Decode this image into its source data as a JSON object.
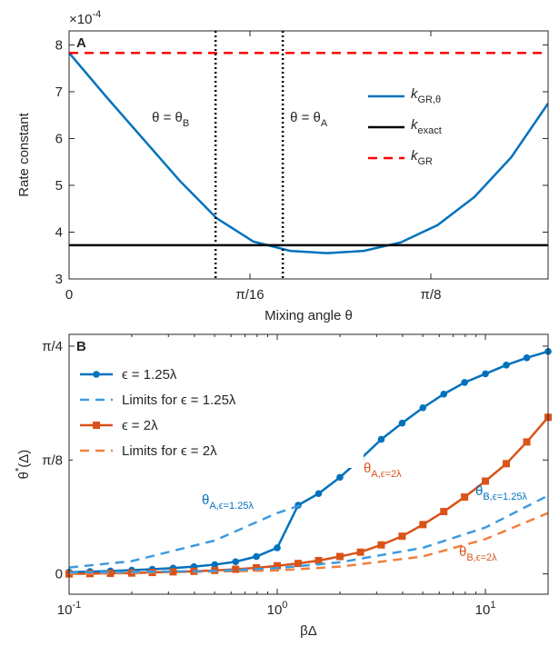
{
  "chart_data": [
    {
      "type": "line",
      "panel_label": "A",
      "y_multiplier": "×10",
      "y_multiplier_exponent": "-4",
      "xlabel": "Mixing angle θ",
      "ylabel": "Rate constant",
      "xlim": [
        0,
        0.52
      ],
      "ylim": [
        3,
        8.3
      ],
      "xticks": [
        0,
        {
          "value": 0.19635,
          "label": "π/16"
        },
        {
          "value": 0.3927,
          "label": "π/8"
        }
      ],
      "yticks": [
        3,
        4,
        5,
        6,
        7,
        8
      ],
      "legend": "right",
      "series": [
        {
          "name": "k",
          "name_sub": "GR,θ",
          "color": "#0072bd",
          "style": "solid",
          "x": [
            0,
            0.04,
            0.08,
            0.12,
            0.16,
            0.2,
            0.24,
            0.28,
            0.32,
            0.36,
            0.4,
            0.44,
            0.48,
            0.52
          ],
          "values": [
            7.83,
            6.9,
            6.0,
            5.1,
            4.3,
            3.8,
            3.6,
            3.55,
            3.6,
            3.78,
            4.15,
            4.75,
            5.6,
            6.75
          ]
        },
        {
          "name": "k",
          "name_sub": "exact",
          "color": "#000000",
          "style": "solid",
          "x": [
            0,
            0.52
          ],
          "values": [
            3.72,
            3.72
          ]
        },
        {
          "name": "k",
          "name_sub": "GR",
          "color": "#ff0000",
          "style": "dashed",
          "x": [
            0,
            0.52
          ],
          "values": [
            7.83,
            7.83
          ]
        }
      ],
      "annotations": [
        {
          "text": "θ = θ",
          "sub": "B",
          "x": 0.159
        },
        {
          "text": "θ = θ",
          "sub": "A",
          "x": 0.232
        }
      ]
    },
    {
      "type": "line",
      "log_x": true,
      "panel_label": "B",
      "xlabel": "βΔ",
      "ylabel": "θ",
      "ylabel_sup": "*",
      "ylabel_rest": "(Δ)",
      "xlim": [
        0.1,
        20
      ],
      "ylim": [
        -0.07,
        0.826
      ],
      "xticks": [
        {
          "value": 0.1,
          "label": "10",
          "exponent": "-1"
        },
        {
          "value": 1,
          "label": "10",
          "exponent": "0"
        },
        {
          "value": 10,
          "label": "10",
          "exponent": "1"
        }
      ],
      "yticks": [
        0,
        {
          "value": 0.3927,
          "label": "π/8"
        },
        {
          "value": 0.7854,
          "label": "π/4"
        }
      ],
      "legend": "upper left",
      "series": [
        {
          "name": "ϵ = 1.25λ",
          "color": "#0072bd",
          "style": "solid",
          "marker": "circle",
          "x": [
            0.1,
            0.126,
            0.158,
            0.2,
            0.251,
            0.316,
            0.398,
            0.501,
            0.631,
            0.794,
            1,
            1.26,
            1.58,
            2,
            2.51,
            3.16,
            3.98,
            5.01,
            6.31,
            7.94,
            10,
            12.6,
            15.8,
            20
          ],
          "values": [
            0.006,
            0.008,
            0.01,
            0.013,
            0.016,
            0.02,
            0.025,
            0.032,
            0.042,
            0.06,
            0.09,
            0.237,
            0.277,
            0.333,
            0.396,
            0.464,
            0.52,
            0.573,
            0.62,
            0.66,
            0.69,
            0.72,
            0.745,
            0.767
          ]
        },
        {
          "name": "Limits for ϵ = 1.25λ",
          "color": "#3d9be0",
          "style": "dashed",
          "x": [
            0.1,
            0.2,
            0.5,
            1,
            1.3
          ],
          "values": [
            0.022,
            0.044,
            0.115,
            0.21,
            0.237
          ]
        },
        {
          "name": "ϵ = 2λ",
          "color": "#d95319",
          "style": "solid",
          "marker": "square",
          "x": [
            0.1,
            0.126,
            0.158,
            0.2,
            0.251,
            0.316,
            0.398,
            0.501,
            0.631,
            0.794,
            1,
            1.26,
            1.58,
            2,
            2.51,
            3.16,
            3.98,
            5.01,
            6.31,
            7.94,
            10,
            12.6,
            15.8,
            20
          ],
          "values": [
            0,
            0.001,
            0.002,
            0.003,
            0.005,
            0.007,
            0.009,
            0.012,
            0.016,
            0.021,
            0.028,
            0.036,
            0.046,
            0.06,
            0.075,
            0.1,
            0.13,
            0.17,
            0.215,
            0.265,
            0.32,
            0.38,
            0.455,
            0.54
          ]
        },
        {
          "name": "Limits for ϵ = 2λ",
          "color": "#f08040",
          "style": "dashed",
          "x": [
            0.1,
            1,
            2,
            5,
            10,
            20
          ],
          "values": [
            0,
            0.012,
            0.025,
            0.06,
            0.12,
            0.21
          ]
        },
        {
          "color": "#3d9be0",
          "style": "dashed",
          "in_legend": false,
          "x": [
            0.1,
            0.5,
            1,
            2,
            5,
            10,
            20
          ],
          "values": [
            0.005,
            0.01,
            0.02,
            0.04,
            0.09,
            0.16,
            0.27
          ]
        }
      ],
      "annotations": [
        {
          "text": "θ",
          "sub": "A,ϵ=1.25λ",
          "color": "#0072bd"
        },
        {
          "text": "θ",
          "sub": "B,ϵ=1.25λ",
          "color": "#0072bd"
        },
        {
          "text": "θ",
          "sub": "A,ϵ=2λ",
          "color": "#d95319"
        },
        {
          "text": "θ",
          "sub": "B,ϵ=2λ",
          "color": "#d95319"
        }
      ]
    }
  ]
}
